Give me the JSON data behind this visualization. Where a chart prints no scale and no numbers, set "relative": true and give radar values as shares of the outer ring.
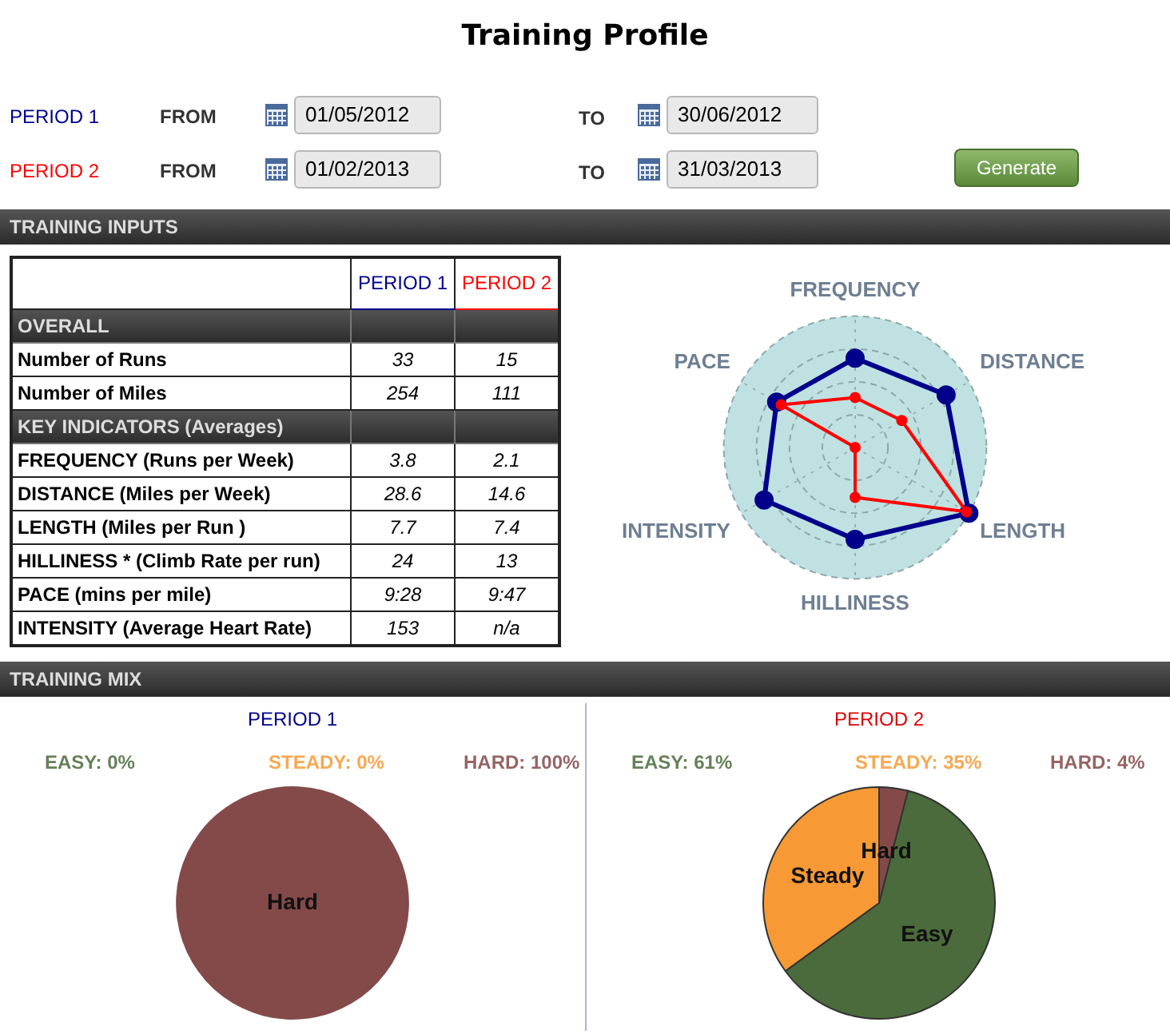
{
  "chart_data": [
    {
      "type": "other",
      "title": "Training Profile",
      "annotations": [
        "PERIOD 1",
        "FROM",
        "01/05/2012",
        "TO",
        "30/06/2012",
        "PERIOD 2",
        "FROM",
        "01/02/2013",
        "TO",
        "31/03/2013",
        "Generate"
      ]
    },
    {
      "type": "other",
      "title": "TRAINING INPUTS",
      "categories": [
        "PERIOD 1",
        "PERIOD 2"
      ],
      "colors": [
        "#00008b",
        "#ff0000"
      ],
      "y_categories": [
        "OVERALL",
        "Number of Runs",
        "Number of Miles",
        "KEY INDICATORS (Averages)",
        "FREQUENCY (Runs per Week)",
        "DISTANCE (Miles per Week)",
        "LENGTH (Miles per Run )",
        "HILLINESS * (Climb Rate per run)",
        "PACE (mins per mile)",
        "INTENSITY (Average Heart Rate)"
      ],
      "cell_labels": [
        [
          null,
          null
        ],
        [
          "33",
          "15"
        ],
        [
          "254",
          "111"
        ],
        [
          null,
          null
        ],
        [
          "3.8",
          "2.1"
        ],
        [
          "28.6",
          "14.6"
        ],
        [
          "7.7",
          "7.4"
        ],
        [
          "24",
          "13"
        ],
        [
          "9:28",
          "9:47"
        ],
        [
          "153",
          "n/a"
        ]
      ]
    },
    {
      "type": "radar",
      "relative": true,
      "grid": true,
      "marker": "circle",
      "categories": [
        "FREQUENCY",
        "DISTANCE",
        "LENGTH",
        "HILLINESS",
        "INTENSITY",
        "PACE"
      ],
      "series": [
        {
          "color": "#00008b",
          "values": [
            0.68,
            0.8,
            1.0,
            0.7,
            0.8,
            0.69
          ]
        },
        {
          "color": "#ff0000",
          "values": [
            0.38,
            0.41,
            0.98,
            0.38,
            0,
            0.65
          ]
        }
      ]
    },
    {
      "type": "other",
      "title": "TRAINING MIX"
    },
    {
      "type": "pie",
      "title": "PERIOD 1",
      "categories": [
        null,
        null,
        "Hard"
      ],
      "values": [
        0,
        0,
        100
      ],
      "colors": [
        "#4b6b3c",
        "#f79a35",
        "#844a4a"
      ],
      "annotations": [
        "EASY: 0%",
        "STEADY: 0%",
        "HARD: 100%"
      ]
    },
    {
      "type": "pie",
      "title": "PERIOD 2",
      "categories": [
        "Easy",
        "Steady",
        "Hard"
      ],
      "values": [
        61,
        35,
        4
      ],
      "colors": [
        "#4b6b3c",
        "#f79a35",
        "#844a4a"
      ],
      "annotations": [
        "EASY: 61%",
        "STEADY: 35%",
        "HARD: 4%"
      ]
    }
  ]
}
